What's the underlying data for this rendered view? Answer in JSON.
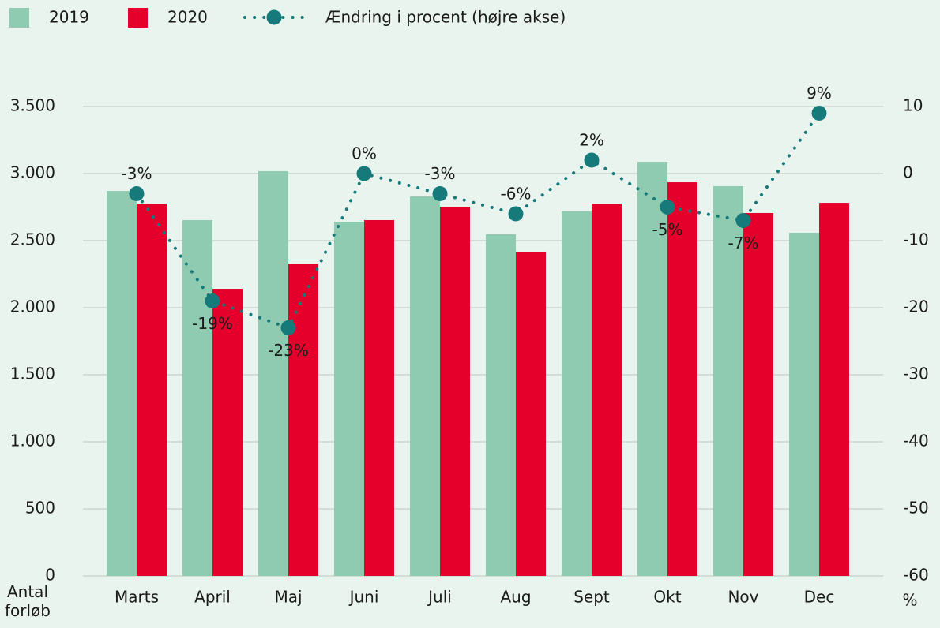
{
  "chart_data": {
    "type": "bar",
    "categories": [
      "Marts",
      "April",
      "Maj",
      "Juni",
      "Juli",
      "Aug",
      "Sept",
      "Okt",
      "Nov",
      "Dec"
    ],
    "series": [
      {
        "name": "2019",
        "color": "#8ecbb0",
        "values": [
          2870,
          2653,
          3018,
          2641,
          2829,
          2547,
          2718,
          3088,
          2906,
          2559
        ]
      },
      {
        "name": "2020",
        "color": "#e4002b",
        "values": [
          2776,
          2141,
          2329,
          2653,
          2753,
          2412,
          2776,
          2935,
          2706,
          2782
        ]
      },
      {
        "name": "Ændring i procent (højre akse)",
        "color": "#167a7a",
        "axis": "y2",
        "type": "line",
        "values": [
          -3,
          -19,
          -23,
          0,
          -3,
          -6,
          2,
          -5,
          -7,
          9
        ],
        "value_labels": [
          "-3%",
          "-19%",
          "-23%",
          "0%",
          "-3%",
          "-6%",
          "2%",
          "-5%",
          "-7%",
          "9%"
        ]
      }
    ],
    "ylabel": "Antal forløb",
    "y2label": "%",
    "ylim": [
      0,
      3500
    ],
    "yticks": [
      0,
      500,
      {
        "value": 1000,
        "label": "1.000"
      },
      {
        "value": 1500,
        "label": "1.500"
      },
      {
        "value": 2000,
        "label": "2.000"
      },
      {
        "value": 2500,
        "label": "2.500"
      },
      {
        "value": 3000,
        "label": "3.000"
      },
      {
        "value": 3500,
        "label": "3.500"
      }
    ],
    "y2lim": [
      -60,
      10
    ],
    "y2ticks": [
      -60,
      -50,
      -40,
      -30,
      -20,
      -10,
      0,
      10
    ],
    "grid": true,
    "legend": "top-left"
  }
}
